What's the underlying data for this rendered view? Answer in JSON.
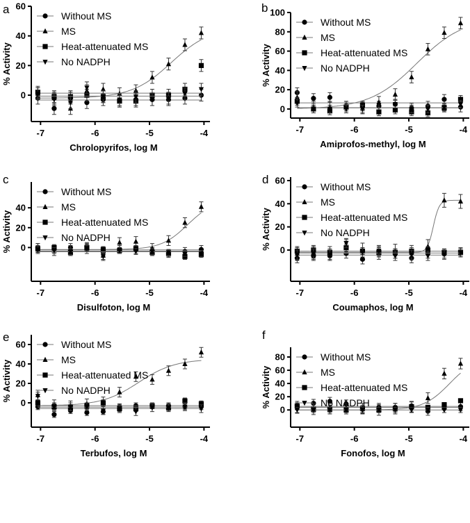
{
  "chart_data": [
    {
      "panel": "a",
      "type": "scatter",
      "xlabel": "Chrolopyrifos, log M",
      "ylabel": "% Activity",
      "xlim": [
        -7.17,
        -3.89
      ],
      "ylim": [
        -17.8,
        60
      ],
      "yticks": [
        0,
        20,
        40,
        60
      ],
      "xticks": [
        -7,
        -6,
        -5,
        -4
      ],
      "x": [
        -7.05,
        -6.75,
        -6.45,
        -6.15,
        -5.85,
        -5.55,
        -5.25,
        -4.95,
        -4.65,
        -4.35,
        -4.05
      ],
      "legend_placement": "top-left",
      "series": [
        {
          "name": "Without MS",
          "marker": "circle",
          "values": [
            -2,
            -9,
            -2,
            -5,
            -3,
            -4,
            -3,
            -3,
            -3,
            -2,
            0
          ],
          "err": 4
        },
        {
          "name": "MS",
          "marker": "triangle",
          "values": [
            1,
            -2,
            -9,
            3,
            4,
            1,
            3,
            12,
            21,
            34,
            42
          ],
          "err": 4,
          "fit": {
            "bottom": -2,
            "top": 46,
            "logEC50": -4.6,
            "hill": 1.2
          }
        },
        {
          "name": "Heat-attenuated MS",
          "marker": "square",
          "values": [
            2,
            -1,
            -1,
            0,
            -1,
            -4,
            -4,
            0,
            0,
            4,
            20
          ],
          "err": 4
        },
        {
          "name": "No NADPH",
          "marker": "triangle-down",
          "values": [
            1,
            -3,
            -5,
            5,
            -1,
            -3,
            -1,
            -3,
            -2,
            1,
            4
          ],
          "err": 4
        }
      ]
    },
    {
      "panel": "b",
      "type": "scatter",
      "xlabel": "Amiprofos-methyl, log M",
      "ylabel": "% Activity",
      "xlim": [
        -7.17,
        -3.89
      ],
      "ylim": [
        -9.4,
        100
      ],
      "yticks": [
        0,
        20,
        40,
        60,
        80,
        100
      ],
      "xticks": [
        -7,
        -6,
        -5,
        -4
      ],
      "x": [
        -7.05,
        -6.75,
        -6.45,
        -6.15,
        -5.85,
        -5.55,
        -5.25,
        -4.95,
        -4.65,
        -4.35,
        -4.05
      ],
      "legend_placement": "top-left",
      "series": [
        {
          "name": "Without MS",
          "marker": "circle",
          "values": [
            17,
            11,
            12,
            3,
            3,
            3,
            5,
            1,
            3,
            10,
            2
          ],
          "err": 5
        },
        {
          "name": "MS",
          "marker": "triangle",
          "values": [
            12,
            2,
            2,
            2,
            1,
            7,
            15,
            33,
            62,
            79,
            89
          ],
          "err": 6,
          "fit": {
            "bottom": 0,
            "top": 95,
            "logEC50": -4.85,
            "hill": 1.0
          }
        },
        {
          "name": "Heat-attenuated MS",
          "marker": "square",
          "values": [
            8,
            0,
            -2,
            2,
            4,
            -3,
            -1,
            -3,
            -4,
            1,
            10
          ],
          "err": 4
        },
        {
          "name": "No NADPH",
          "marker": "triangle-down",
          "values": [
            6,
            0,
            0,
            0,
            0,
            -3,
            5,
            0,
            0,
            2,
            5
          ],
          "err": 4
        }
      ]
    },
    {
      "panel": "c",
      "type": "scatter",
      "xlabel": "Disulfoton, log M",
      "ylabel": "% Activity",
      "xlim": [
        -7.17,
        -3.89
      ],
      "ylim": [
        -34,
        66
      ],
      "yticks": [
        0,
        20,
        40
      ],
      "xticks": [
        -7,
        -6,
        -5,
        -4
      ],
      "x": [
        -7.05,
        -6.75,
        -6.45,
        -6.15,
        -5.85,
        -5.55,
        -5.25,
        -4.95,
        -4.65,
        -4.35,
        -4.05
      ],
      "legend_placement": "top-left",
      "series": [
        {
          "name": "Without MS",
          "marker": "circle",
          "values": [
            0,
            -2,
            0,
            1,
            -5,
            -2,
            -2,
            -4,
            -6,
            -4,
            -2
          ],
          "err": 4
        },
        {
          "name": "MS",
          "marker": "triangle",
          "values": [
            -1,
            -3,
            -3,
            -1,
            -8,
            5,
            6,
            -1,
            7,
            25,
            41
          ],
          "err": 5,
          "fit": {
            "bottom": -2,
            "top": 48,
            "logEC50": -4.3,
            "hill": 1.8
          }
        },
        {
          "name": "Heat-attenuated MS",
          "marker": "square",
          "values": [
            -1,
            0,
            -5,
            0,
            -2,
            -3,
            -1,
            -5,
            -6,
            -9,
            -7
          ],
          "err": 3
        },
        {
          "name": "No NADPH",
          "marker": "triangle-down",
          "values": [
            -2,
            -3,
            -4,
            -1,
            -9,
            -3,
            -4,
            -4,
            -5,
            -6,
            -6
          ],
          "err": 3
        }
      ]
    },
    {
      "panel": "d",
      "type": "scatter",
      "xlabel": "Coumaphos, log M",
      "ylabel": "% Activity",
      "xlim": [
        -7.17,
        -3.89
      ],
      "ylim": [
        -27,
        63
      ],
      "yticks": [
        0,
        20,
        40,
        60
      ],
      "xticks": [
        -7,
        -6,
        -5,
        -4
      ],
      "x": [
        -7.05,
        -6.75,
        -6.45,
        -6.15,
        -5.85,
        -5.55,
        -5.25,
        -4.95,
        -4.65,
        -4.35,
        -4.05
      ],
      "legend_placement": "top-left",
      "series": [
        {
          "name": "Without MS",
          "marker": "circle",
          "values": [
            -7,
            -5,
            -5,
            -3,
            -8,
            -2,
            -3,
            -7,
            -3,
            -3,
            -2
          ],
          "err": 4
        },
        {
          "name": "MS",
          "marker": "triangle",
          "values": [
            -3,
            -2,
            -3,
            3,
            0,
            -2,
            -1,
            -2,
            3,
            43,
            42
          ],
          "err": 6,
          "fit": {
            "bottom": -2,
            "top": 43,
            "logEC50": -4.55,
            "hill": 8
          }
        },
        {
          "name": "Heat-attenuated MS",
          "marker": "square",
          "values": [
            -1,
            0,
            -2,
            2,
            -1,
            -2,
            -2,
            -1,
            0,
            -2,
            -2
          ],
          "err": 3
        },
        {
          "name": "No NADPH",
          "marker": "triangle-down",
          "values": [
            -4,
            -3,
            -4,
            6,
            -2,
            -1,
            -5,
            -4,
            -5,
            -4,
            -2
          ],
          "err": 4
        }
      ]
    },
    {
      "panel": "e",
      "type": "scatter",
      "xlabel": "Terbufos, log M",
      "ylabel": "% Activity",
      "xlim": [
        -7.17,
        -3.89
      ],
      "ylim": [
        -25,
        70
      ],
      "yticks": [
        0,
        20,
        40,
        60
      ],
      "xticks": [
        -7,
        -6,
        -5,
        -4
      ],
      "x": [
        -7.05,
        -6.75,
        -6.45,
        -6.15,
        -5.85,
        -5.55,
        -5.25,
        -4.95,
        -4.65,
        -4.35,
        -4.05
      ],
      "legend_placement": "top-left",
      "series": [
        {
          "name": "Without MS",
          "marker": "circle",
          "values": [
            -4,
            -12,
            -8,
            -10,
            -9,
            -4,
            -3,
            -3,
            -3,
            -4,
            -4
          ],
          "err": 3
        },
        {
          "name": "MS",
          "marker": "triangle",
          "values": [
            8,
            -2,
            -3,
            -1,
            1,
            11,
            27,
            24,
            33,
            40,
            52
          ],
          "err": 5,
          "fit": {
            "bottom": -3,
            "top": 45,
            "logEC50": -5.2,
            "hill": 1.3
          }
        },
        {
          "name": "Heat-attenuated MS",
          "marker": "square",
          "values": [
            0,
            -4,
            -5,
            -3,
            0,
            -6,
            -6,
            -3,
            -5,
            2,
            -1
          ],
          "err": 3
        },
        {
          "name": "No NADPH",
          "marker": "triangle-down",
          "values": [
            7,
            -4,
            -4,
            -4,
            -8,
            -6,
            -9,
            -5,
            -5,
            -4,
            -6
          ],
          "err": 4
        }
      ]
    },
    {
      "panel": "f",
      "type": "scatter",
      "xlabel": "Fonofos, log M",
      "ylabel": "% Activity",
      "xlim": [
        -7.17,
        -3.89
      ],
      "ylim": [
        -26,
        94.7
      ],
      "yticks": [
        0,
        20,
        40,
        60,
        80
      ],
      "xticks": [
        -7,
        -6,
        -5,
        -4
      ],
      "x": [
        -7.05,
        -6.75,
        -6.45,
        -6.15,
        -5.85,
        -5.55,
        -5.25,
        -4.95,
        -4.65,
        -4.35,
        -4.05
      ],
      "legend_placement": "top-left",
      "series": [
        {
          "name": "Without MS",
          "marker": "circle",
          "values": [
            7,
            10,
            13,
            9,
            1,
            4,
            4,
            6,
            -2,
            2,
            5
          ],
          "err": 6
        },
        {
          "name": "MS",
          "marker": "triangle",
          "values": [
            3,
            1,
            2,
            2,
            2,
            0,
            2,
            5,
            18,
            55,
            70
          ],
          "err": 8,
          "fit": {
            "bottom": 0,
            "top": 80,
            "logEC50": -4.25,
            "hill": 1.8
          }
        },
        {
          "name": "Heat-attenuated MS",
          "marker": "square",
          "values": [
            6,
            1,
            1,
            0,
            2,
            0,
            2,
            5,
            4,
            8,
            14
          ],
          "err": 3
        },
        {
          "name": "No NADPH",
          "marker": "triangle-down",
          "values": [
            0,
            0,
            0,
            0,
            0,
            0,
            0,
            0,
            0,
            0,
            0
          ],
          "err": 4
        }
      ]
    }
  ]
}
